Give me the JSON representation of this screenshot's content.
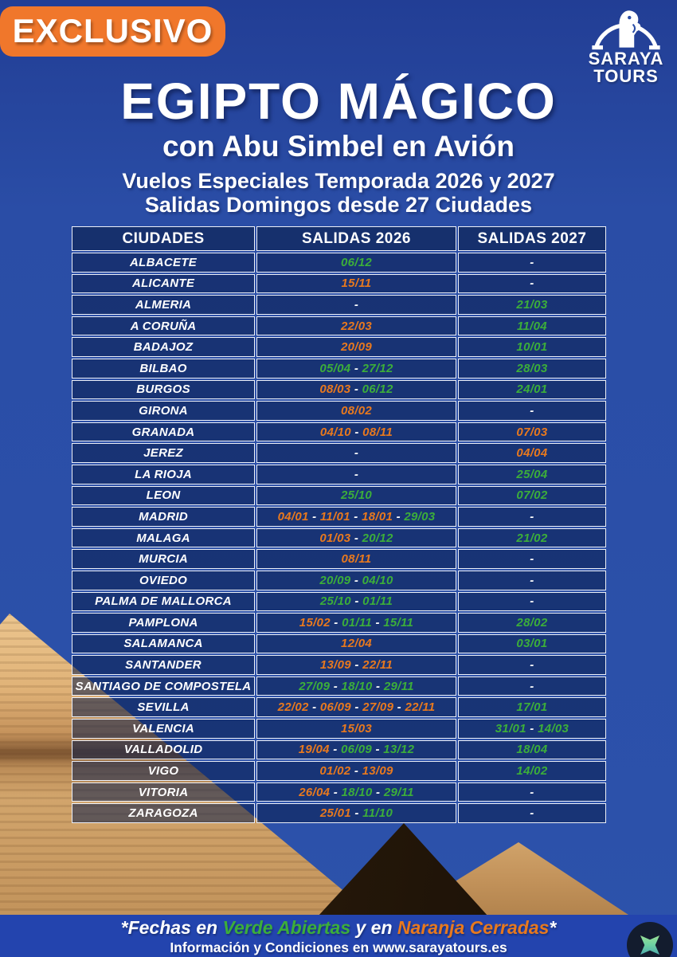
{
  "badge": {
    "label": "EXCLUSIVO"
  },
  "logo": {
    "name_top": "SARAYA",
    "name_bottom": "TOURS"
  },
  "header": {
    "title": "EGIPTO MÁGICO",
    "subtitle": "con Abu Simbel en Avión",
    "info_line1": "Vuelos Especiales Temporada 2026 y 2027",
    "info_line2": "Salidas Domingos desde 27 Ciudades"
  },
  "table": {
    "columns": [
      "CIUDADES",
      "SALIDAS 2026",
      "SALIDAS 2027"
    ],
    "empty_placeholder": "-",
    "date_separator": " - ",
    "rows": [
      {
        "city": "ALBACETE",
        "salidas_2026": [
          {
            "date": "06/12",
            "estado": "abierta"
          }
        ],
        "salidas_2027": []
      },
      {
        "city": "ALICANTE",
        "salidas_2026": [
          {
            "date": "15/11",
            "estado": "cerrada"
          }
        ],
        "salidas_2027": []
      },
      {
        "city": "ALMERIA",
        "salidas_2026": [],
        "salidas_2027": [
          {
            "date": "21/03",
            "estado": "abierta"
          }
        ]
      },
      {
        "city": "A CORUÑA",
        "salidas_2026": [
          {
            "date": "22/03",
            "estado": "cerrada"
          }
        ],
        "salidas_2027": [
          {
            "date": "11/04",
            "estado": "abierta"
          }
        ]
      },
      {
        "city": "BADAJOZ",
        "salidas_2026": [
          {
            "date": "20/09",
            "estado": "cerrada"
          }
        ],
        "salidas_2027": [
          {
            "date": "10/01",
            "estado": "abierta"
          }
        ]
      },
      {
        "city": "BILBAO",
        "salidas_2026": [
          {
            "date": "05/04",
            "estado": "abierta"
          },
          {
            "date": "27/12",
            "estado": "abierta"
          }
        ],
        "salidas_2027": [
          {
            "date": "28/03",
            "estado": "abierta"
          }
        ]
      },
      {
        "city": "BURGOS",
        "salidas_2026": [
          {
            "date": "08/03",
            "estado": "cerrada"
          },
          {
            "date": "06/12",
            "estado": "abierta"
          }
        ],
        "salidas_2027": [
          {
            "date": "24/01",
            "estado": "abierta"
          }
        ]
      },
      {
        "city": "GIRONA",
        "salidas_2026": [
          {
            "date": "08/02",
            "estado": "cerrada"
          }
        ],
        "salidas_2027": []
      },
      {
        "city": "GRANADA",
        "salidas_2026": [
          {
            "date": "04/10",
            "estado": "cerrada"
          },
          {
            "date": "08/11",
            "estado": "cerrada"
          }
        ],
        "salidas_2027": [
          {
            "date": "07/03",
            "estado": "cerrada"
          }
        ]
      },
      {
        "city": "JEREZ",
        "salidas_2026": [],
        "salidas_2027": [
          {
            "date": "04/04",
            "estado": "cerrada"
          }
        ]
      },
      {
        "city": "LA RIOJA",
        "salidas_2026": [],
        "salidas_2027": [
          {
            "date": "25/04",
            "estado": "abierta"
          }
        ]
      },
      {
        "city": "LEON",
        "salidas_2026": [
          {
            "date": "25/10",
            "estado": "abierta"
          }
        ],
        "salidas_2027": [
          {
            "date": "07/02",
            "estado": "abierta"
          }
        ]
      },
      {
        "city": "MADRID",
        "salidas_2026": [
          {
            "date": "04/01",
            "estado": "cerrada"
          },
          {
            "date": "11/01",
            "estado": "cerrada"
          },
          {
            "date": "18/01",
            "estado": "cerrada"
          },
          {
            "date": "29/03",
            "estado": "abierta"
          }
        ],
        "salidas_2027": []
      },
      {
        "city": "MALAGA",
        "salidas_2026": [
          {
            "date": "01/03",
            "estado": "cerrada"
          },
          {
            "date": "20/12",
            "estado": "abierta"
          }
        ],
        "salidas_2027": [
          {
            "date": "21/02",
            "estado": "abierta"
          }
        ]
      },
      {
        "city": "MURCIA",
        "salidas_2026": [
          {
            "date": "08/11",
            "estado": "cerrada"
          }
        ],
        "salidas_2027": []
      },
      {
        "city": "OVIEDO",
        "salidas_2026": [
          {
            "date": "20/09",
            "estado": "abierta"
          },
          {
            "date": "04/10",
            "estado": "abierta"
          }
        ],
        "salidas_2027": []
      },
      {
        "city": "PALMA DE MALLORCA",
        "salidas_2026": [
          {
            "date": "25/10",
            "estado": "abierta"
          },
          {
            "date": "01/11",
            "estado": "abierta"
          }
        ],
        "salidas_2027": []
      },
      {
        "city": "PAMPLONA",
        "salidas_2026": [
          {
            "date": "15/02",
            "estado": "cerrada"
          },
          {
            "date": "01/11",
            "estado": "abierta"
          },
          {
            "date": "15/11",
            "estado": "abierta"
          }
        ],
        "salidas_2027": [
          {
            "date": "28/02",
            "estado": "abierta"
          }
        ]
      },
      {
        "city": "SALAMANCA",
        "salidas_2026": [
          {
            "date": "12/04",
            "estado": "cerrada"
          }
        ],
        "salidas_2027": [
          {
            "date": "03/01",
            "estado": "abierta"
          }
        ]
      },
      {
        "city": "SANTANDER",
        "salidas_2026": [
          {
            "date": "13/09",
            "estado": "cerrada"
          },
          {
            "date": "22/11",
            "estado": "cerrada"
          }
        ],
        "salidas_2027": []
      },
      {
        "city": "SANTIAGO DE COMPOSTELA",
        "salidas_2026": [
          {
            "date": "27/09",
            "estado": "abierta"
          },
          {
            "date": "18/10",
            "estado": "abierta"
          },
          {
            "date": "29/11",
            "estado": "abierta"
          }
        ],
        "salidas_2027": []
      },
      {
        "city": "SEVILLA",
        "salidas_2026": [
          {
            "date": "22/02",
            "estado": "cerrada"
          },
          {
            "date": "06/09",
            "estado": "cerrada"
          },
          {
            "date": "27/09",
            "estado": "cerrada"
          },
          {
            "date": "22/11",
            "estado": "cerrada"
          }
        ],
        "salidas_2027": [
          {
            "date": "17/01",
            "estado": "abierta"
          }
        ]
      },
      {
        "city": "VALENCIA",
        "salidas_2026": [
          {
            "date": "15/03",
            "estado": "cerrada"
          }
        ],
        "salidas_2027": [
          {
            "date": "31/01",
            "estado": "abierta"
          },
          {
            "date": "14/03",
            "estado": "abierta"
          }
        ]
      },
      {
        "city": "VALLADOLID",
        "salidas_2026": [
          {
            "date": "19/04",
            "estado": "cerrada"
          },
          {
            "date": "06/09",
            "estado": "abierta"
          },
          {
            "date": "13/12",
            "estado": "abierta"
          }
        ],
        "salidas_2027": [
          {
            "date": "18/04",
            "estado": "abierta"
          }
        ]
      },
      {
        "city": "VIGO",
        "salidas_2026": [
          {
            "date": "01/02",
            "estado": "cerrada"
          },
          {
            "date": "13/09",
            "estado": "cerrada"
          }
        ],
        "salidas_2027": [
          {
            "date": "14/02",
            "estado": "abierta"
          }
        ]
      },
      {
        "city": "VITORIA",
        "salidas_2026": [
          {
            "date": "26/04",
            "estado": "cerrada"
          },
          {
            "date": "18/10",
            "estado": "abierta"
          },
          {
            "date": "29/11",
            "estado": "abierta"
          }
        ],
        "salidas_2027": []
      },
      {
        "city": "ZARAGOZA",
        "salidas_2026": [
          {
            "date": "25/01",
            "estado": "cerrada"
          },
          {
            "date": "11/10",
            "estado": "abierta"
          }
        ],
        "salidas_2027": []
      }
    ]
  },
  "footer": {
    "legend_segments": [
      {
        "text": "*Fechas en ",
        "estado": "normal"
      },
      {
        "text": "Verde Abiertas",
        "estado": "abierta"
      },
      {
        "text": " y en ",
        "estado": "normal"
      },
      {
        "text": "Naranja Cerradas",
        "estado": "cerrada"
      },
      {
        "text": "*",
        "estado": "normal"
      }
    ],
    "info": "Información y Condiciones en www.sarayatours.es"
  },
  "colors": {
    "abierta": "#3cae3a",
    "cerrada": "#e8791e",
    "normal": "#ffffff",
    "badge_orange": "#f0772b",
    "background_blue": "#2a4da6",
    "cell_navy": "#1d3a7a"
  }
}
